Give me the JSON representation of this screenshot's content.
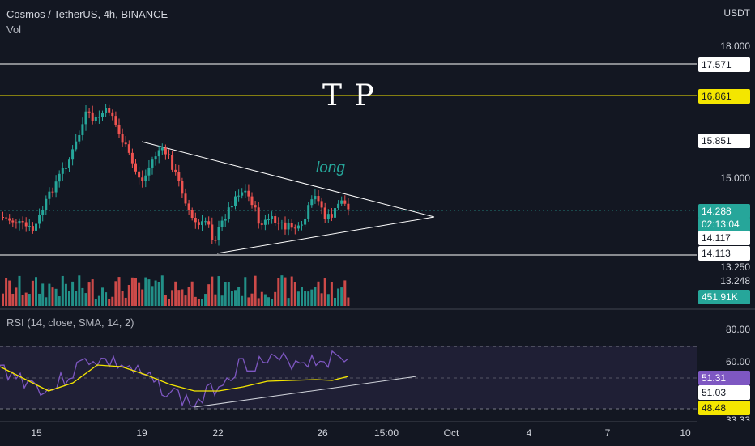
{
  "header": {
    "symbol_line": "Cosmos / TetherUS, 4h, BINANCE",
    "vol_label": "Vol",
    "currency": "USDT"
  },
  "price_axis": {
    "labels": [
      "18.000",
      "15.000",
      "13.250",
      "13.248"
    ]
  },
  "price_tags": {
    "line_top": "17.571",
    "line_tp": "16.861",
    "mid": "15.851",
    "last_price": "14.288",
    "countdown": "02:13:04",
    "tag_a": "14.117",
    "tag_b": "14.113",
    "volume": "451.91K"
  },
  "rsi": {
    "legend": "RSI (14, close, SMA, 14, 2)",
    "axis_labels": [
      "80.00",
      "60.00",
      "33.33"
    ],
    "value_rsi": "51.31",
    "value_mid": "51.03",
    "value_ma": "48.48"
  },
  "time_axis": [
    "15",
    "19",
    "22",
    "26",
    "15:00",
    "Oct",
    "4",
    "7",
    "10"
  ],
  "annotations": {
    "long_text": "long",
    "tp_text": "T P"
  },
  "colors": {
    "up": "#26a69a",
    "down": "#ef5350",
    "tp_line": "#f4e600",
    "rsi_line": "#7e57c2",
    "rsi_ma": "#f4e600",
    "last_price_bg": "#26a69a",
    "background": "#131722"
  }
}
